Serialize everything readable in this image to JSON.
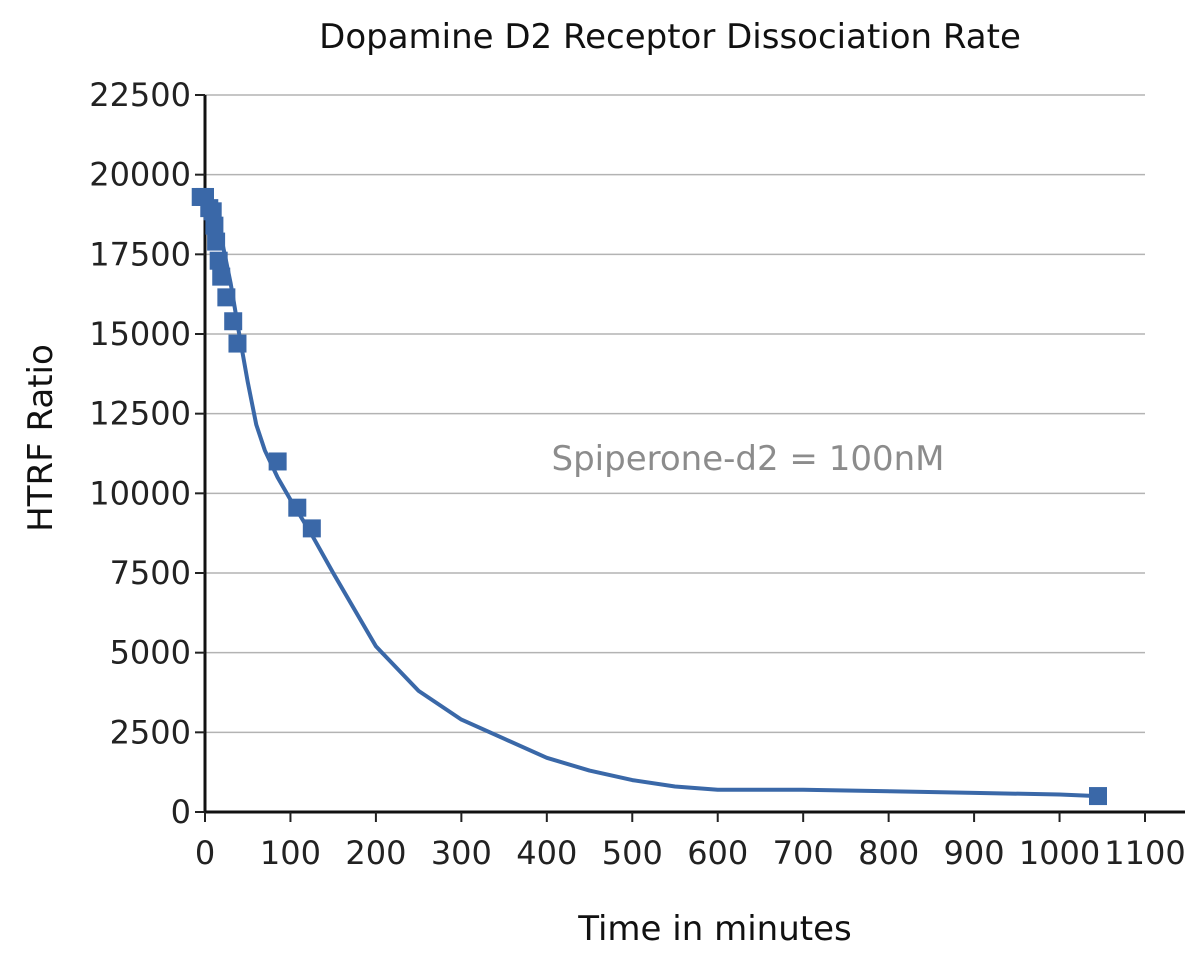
{
  "chart_data": {
    "type": "scatter",
    "title": "Dopamine D2 Receptor Dissociation Rate",
    "xlabel": "Time in minutes",
    "ylabel": "HTRF Ratio",
    "annotation": "Spiperone-d2 = 100nM",
    "xlim": [
      0,
      1100
    ],
    "ylim": [
      0,
      22500
    ],
    "xticks": [
      0,
      100,
      200,
      300,
      400,
      500,
      600,
      700,
      800,
      900,
      1000,
      1100
    ],
    "yticks": [
      0,
      2500,
      5000,
      7500,
      10000,
      12500,
      15000,
      17500,
      20000,
      22500
    ],
    "grid": true,
    "series": [
      {
        "marker": "square",
        "color": "#3a68a8",
        "points": [
          {
            "x": -5,
            "y": 19300
          },
          {
            "x": 0,
            "y": 19300
          },
          {
            "x": 5,
            "y": 18950
          },
          {
            "x": 9,
            "y": 18850
          },
          {
            "x": 11,
            "y": 18400
          },
          {
            "x": 13,
            "y": 17900
          },
          {
            "x": 16,
            "y": 17300
          },
          {
            "x": 19,
            "y": 16800
          },
          {
            "x": 25,
            "y": 16150
          },
          {
            "x": 33,
            "y": 15400
          },
          {
            "x": 38,
            "y": 14700
          },
          {
            "x": 85,
            "y": 11000
          },
          {
            "x": 108,
            "y": 9550
          },
          {
            "x": 125,
            "y": 8900
          },
          {
            "x": 1045,
            "y": 500
          }
        ]
      }
    ],
    "fit_curve": {
      "color": "#3a68a8",
      "points": [
        [
          0,
          19300
        ],
        [
          10,
          18750
        ],
        [
          20,
          17900
        ],
        [
          30,
          16600
        ],
        [
          40,
          15000
        ],
        [
          50,
          13500
        ],
        [
          60,
          12150
        ],
        [
          70,
          11350
        ],
        [
          85,
          10500
        ],
        [
          100,
          9800
        ],
        [
          125,
          8700
        ],
        [
          150,
          7500
        ],
        [
          200,
          5200
        ],
        [
          250,
          3800
        ],
        [
          300,
          2900
        ],
        [
          350,
          2300
        ],
        [
          400,
          1700
        ],
        [
          450,
          1300
        ],
        [
          500,
          1000
        ],
        [
          550,
          800
        ],
        [
          600,
          700
        ],
        [
          700,
          700
        ],
        [
          800,
          650
        ],
        [
          900,
          600
        ],
        [
          1000,
          550
        ],
        [
          1045,
          500
        ]
      ]
    }
  }
}
